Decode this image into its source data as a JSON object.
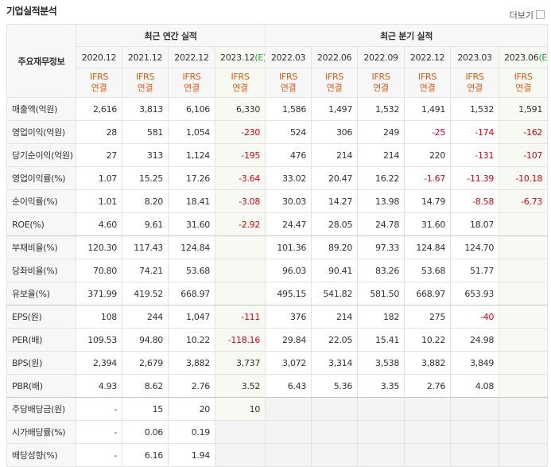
{
  "header": {
    "title": "기업실적분석",
    "more": "더보기"
  },
  "table": {
    "corner": "주요재무정보",
    "groups": [
      {
        "label": "최근 연간 실적",
        "span": 4
      },
      {
        "label": "최근 분기 실적",
        "span": 6
      }
    ],
    "periods": [
      {
        "label": "2020.12"
      },
      {
        "label": "2021.12"
      },
      {
        "label": "2022.12"
      },
      {
        "label": "2023.12",
        "mark": "(E)"
      },
      {
        "label": "2022.03"
      },
      {
        "label": "2022.06"
      },
      {
        "label": "2022.09"
      },
      {
        "label": "2022.12"
      },
      {
        "label": "2023.03"
      },
      {
        "label": "2023.06",
        "mark": "(E)"
      }
    ],
    "basis": [
      [
        "IFRS",
        "연결"
      ],
      [
        "IFRS",
        "연결"
      ],
      [
        "IFRS",
        "연결"
      ],
      [
        "IFRS",
        "연결"
      ],
      [
        "IFRS",
        "연결"
      ],
      [
        "IFRS",
        "연결"
      ],
      [
        "IFRS",
        "연결"
      ],
      [
        "IFRS",
        "연결"
      ],
      [
        "IFRS",
        "연결"
      ],
      [
        "IFRS",
        "연결"
      ]
    ],
    "rows": [
      {
        "label": "매출액(억원)",
        "cells": [
          "2,616",
          "3,813",
          "6,106",
          "6,330",
          "1,586",
          "1,497",
          "1,532",
          "1,491",
          "1,532",
          "1,591"
        ]
      },
      {
        "label": "영업이익(억원)",
        "cells": [
          "28",
          "581",
          "1,054",
          "-230",
          "524",
          "306",
          "249",
          "-25",
          "-174",
          "-162"
        ]
      },
      {
        "label": "당기순이익(억원)",
        "cells": [
          "27",
          "313",
          "1,124",
          "-195",
          "476",
          "214",
          "214",
          "220",
          "-131",
          "-107"
        ]
      },
      {
        "label": "영업이익률(%)",
        "cells": [
          "1.07",
          "15.25",
          "17.26",
          "-3.64",
          "33.02",
          "20.47",
          "16.22",
          "-1.67",
          "-11.39",
          "-10.18"
        ]
      },
      {
        "label": "순이익률(%)",
        "cells": [
          "1.01",
          "8.20",
          "18.41",
          "-3.08",
          "30.03",
          "14.27",
          "13.98",
          "14.79",
          "-8.58",
          "-6.73"
        ]
      },
      {
        "label": "ROE(%)",
        "cells": [
          "4.60",
          "9.61",
          "31.60",
          "-2.92",
          "24.47",
          "28.05",
          "24.78",
          "31.60",
          "18.07",
          null
        ]
      },
      {
        "label": "부채비율(%)",
        "cells": [
          "120.30",
          "117.43",
          "124.84",
          null,
          "101.36",
          "89.20",
          "97.33",
          "124.84",
          "124.70",
          null
        ]
      },
      {
        "label": "당좌비율(%)",
        "cells": [
          "70.80",
          "74.21",
          "53.68",
          null,
          "96.03",
          "90.41",
          "83.26",
          "53.68",
          "51.77",
          null
        ]
      },
      {
        "label": "유보율(%)",
        "cells": [
          "371.99",
          "419.52",
          "668.97",
          null,
          "495.15",
          "541.82",
          "581.50",
          "668.97",
          "653.93",
          null
        ]
      },
      {
        "label": "EPS(원)",
        "cells": [
          "108",
          "244",
          "1,047",
          "-111",
          "376",
          "214",
          "182",
          "275",
          "-40",
          null
        ]
      },
      {
        "label": "PER(배)",
        "cells": [
          "109.53",
          "94.80",
          "10.22",
          "-118.16",
          "29.84",
          "22.05",
          "15.41",
          "10.22",
          "24.98",
          null
        ]
      },
      {
        "label": "BPS(원)",
        "cells": [
          "2,394",
          "2,679",
          "3,882",
          "3,737",
          "3,072",
          "3,314",
          "3,538",
          "3,882",
          "3,849",
          null
        ]
      },
      {
        "label": "PBR(배)",
        "cells": [
          "4.93",
          "8.62",
          "2.76",
          "3.52",
          "6.43",
          "5.36",
          "3.35",
          "2.76",
          "4.08",
          null
        ]
      },
      {
        "label": "주당배당금(원)",
        "cells": [
          "-",
          "15",
          "20",
          "10",
          null,
          null,
          null,
          null,
          null,
          null
        ]
      },
      {
        "label": "시가배당률(%)",
        "cells": [
          "-",
          "0.06",
          "0.19",
          null,
          null,
          null,
          null,
          null,
          null,
          null
        ]
      },
      {
        "label": "배당성향(%)",
        "cells": [
          "-",
          "6.16",
          "1.94",
          null,
          null,
          null,
          null,
          null,
          null,
          null
        ]
      }
    ]
  }
}
